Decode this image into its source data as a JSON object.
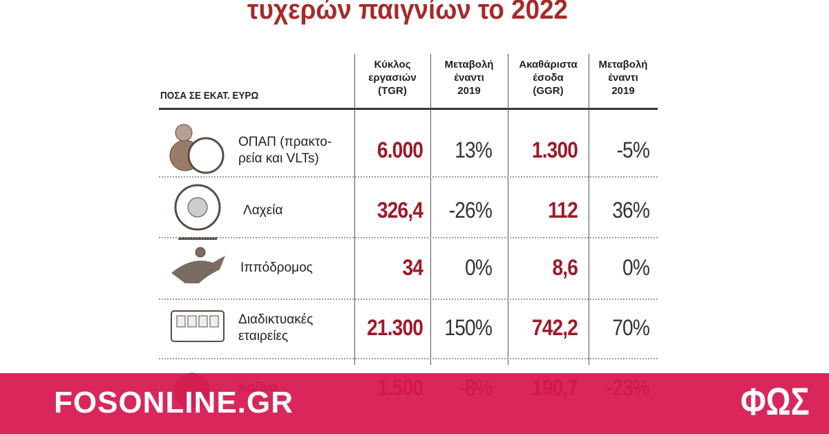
{
  "title": "τυχερών παιγνίων το 2022",
  "table": {
    "caption": "ΠΟΣΑ ΣΕ ΕΚΑΤ. ΕΥΡΩ",
    "columns": [
      [
        "Κύκλος",
        "εργασιών",
        "(TGR)"
      ],
      [
        "Μεταβολή",
        "έναντι",
        "2019"
      ],
      [
        "Ακαθάριστα",
        "έσοδα",
        "(GGR)"
      ],
      [
        "Μεταβολή",
        "έναντι",
        "2019"
      ]
    ],
    "rows": [
      {
        "name": [
          "ΟΠΑΠ (πρακτο-",
          "ρεία και VLTs)"
        ],
        "cells": [
          "6.000",
          "13%",
          "1.300",
          "-5%"
        ]
      },
      {
        "name": [
          "Λαχεία"
        ],
        "cells": [
          "326,4",
          "-26%",
          "112",
          "36%"
        ]
      },
      {
        "name": [
          "Ιππόδρομος"
        ],
        "cells": [
          "34",
          "0%",
          "8,6",
          "0%"
        ]
      },
      {
        "name": [
          "Διαδικτυακές",
          "εταιρείες"
        ],
        "cells": [
          "21.300",
          "150%",
          "742,2",
          "70%"
        ]
      },
      {
        "name": [
          "Καζίνο"
        ],
        "cells": [
          "1.500",
          "-8%",
          "190,7",
          "-23%"
        ]
      }
    ]
  },
  "footer": {
    "site": "FOSONLINE.GR",
    "logo": "ΦΩΣ"
  }
}
